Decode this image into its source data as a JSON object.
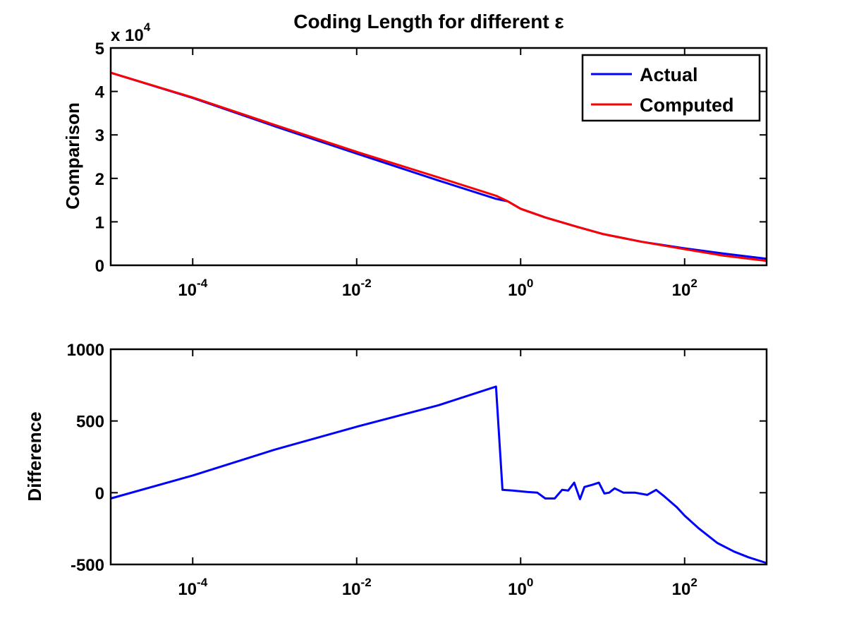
{
  "chart_data": [
    {
      "type": "line",
      "title": "Coding Length for different ε",
      "xlabel": "",
      "ylabel": "Comparison",
      "xscale": "log",
      "xlim": [
        1e-05,
        1000
      ],
      "ylim": [
        0,
        50000
      ],
      "x_ticks": [
        0.0001,
        0.01,
        1,
        100
      ],
      "x_tick_labels": [
        {
          "base": "10",
          "exp": "-4"
        },
        {
          "base": "10",
          "exp": "-2"
        },
        {
          "base": "10",
          "exp": "0"
        },
        {
          "base": "10",
          "exp": "2"
        }
      ],
      "y_ticks": [
        0,
        10000,
        20000,
        30000,
        40000,
        50000
      ],
      "y_tick_labels": [
        "0",
        "1",
        "2",
        "3",
        "4",
        "5"
      ],
      "y_multiplier": {
        "prefix": "x 10",
        "exp": "4"
      },
      "grid": false,
      "legend_position": "top-right",
      "series": [
        {
          "name": "Actual",
          "color": "#0000ff",
          "x": [
            1e-05,
            0.0001,
            0.001,
            0.01,
            0.1,
            0.5,
            0.7,
            1,
            2,
            5,
            10,
            30,
            100,
            300,
            1000
          ],
          "y": [
            44300,
            38500,
            32000,
            25700,
            19500,
            15300,
            14700,
            13000,
            11000,
            8800,
            7200,
            5400,
            3900,
            2700,
            1500
          ]
        },
        {
          "name": "Computed",
          "color": "#ff0000",
          "x": [
            1e-05,
            0.0001,
            0.001,
            0.01,
            0.1,
            0.5,
            0.7,
            1,
            2,
            5,
            10,
            30,
            100,
            300,
            1000
          ],
          "y": [
            44300,
            38600,
            32300,
            26100,
            20200,
            16000,
            14700,
            13000,
            11000,
            8800,
            7200,
            5400,
            3700,
            2200,
            1000
          ]
        }
      ]
    },
    {
      "type": "line",
      "title": "",
      "xlabel": "",
      "ylabel": "Difference",
      "xscale": "log",
      "xlim": [
        1e-05,
        1000
      ],
      "ylim": [
        -500,
        1000
      ],
      "x_ticks": [
        0.0001,
        0.01,
        1,
        100
      ],
      "x_tick_labels": [
        {
          "base": "10",
          "exp": "-4"
        },
        {
          "base": "10",
          "exp": "-2"
        },
        {
          "base": "10",
          "exp": "0"
        },
        {
          "base": "10",
          "exp": "2"
        }
      ],
      "y_ticks": [
        -500,
        0,
        500,
        1000
      ],
      "y_tick_labels": [
        "-500",
        "0",
        "500",
        "1000"
      ],
      "grid": false,
      "series": [
        {
          "color": "#0000ff",
          "x": [
            1e-05,
            0.0001,
            0.001,
            0.01,
            0.1,
            0.5,
            0.6,
            0.8,
            1.2,
            1.6,
            2,
            2.6,
            3.2,
            3.8,
            4.5,
            5.3,
            6,
            7.5,
            9,
            10.5,
            12,
            14,
            18,
            25,
            35,
            45,
            55,
            80,
            100,
            150,
            250,
            400,
            600,
            1000
          ],
          "y": [
            -40,
            120,
            300,
            460,
            610,
            740,
            20,
            15,
            5,
            0,
            -40,
            -40,
            20,
            15,
            70,
            -45,
            40,
            55,
            70,
            -5,
            0,
            30,
            0,
            0,
            -15,
            20,
            -20,
            -100,
            -160,
            -250,
            -350,
            -410,
            -450,
            -490
          ]
        }
      ]
    }
  ]
}
